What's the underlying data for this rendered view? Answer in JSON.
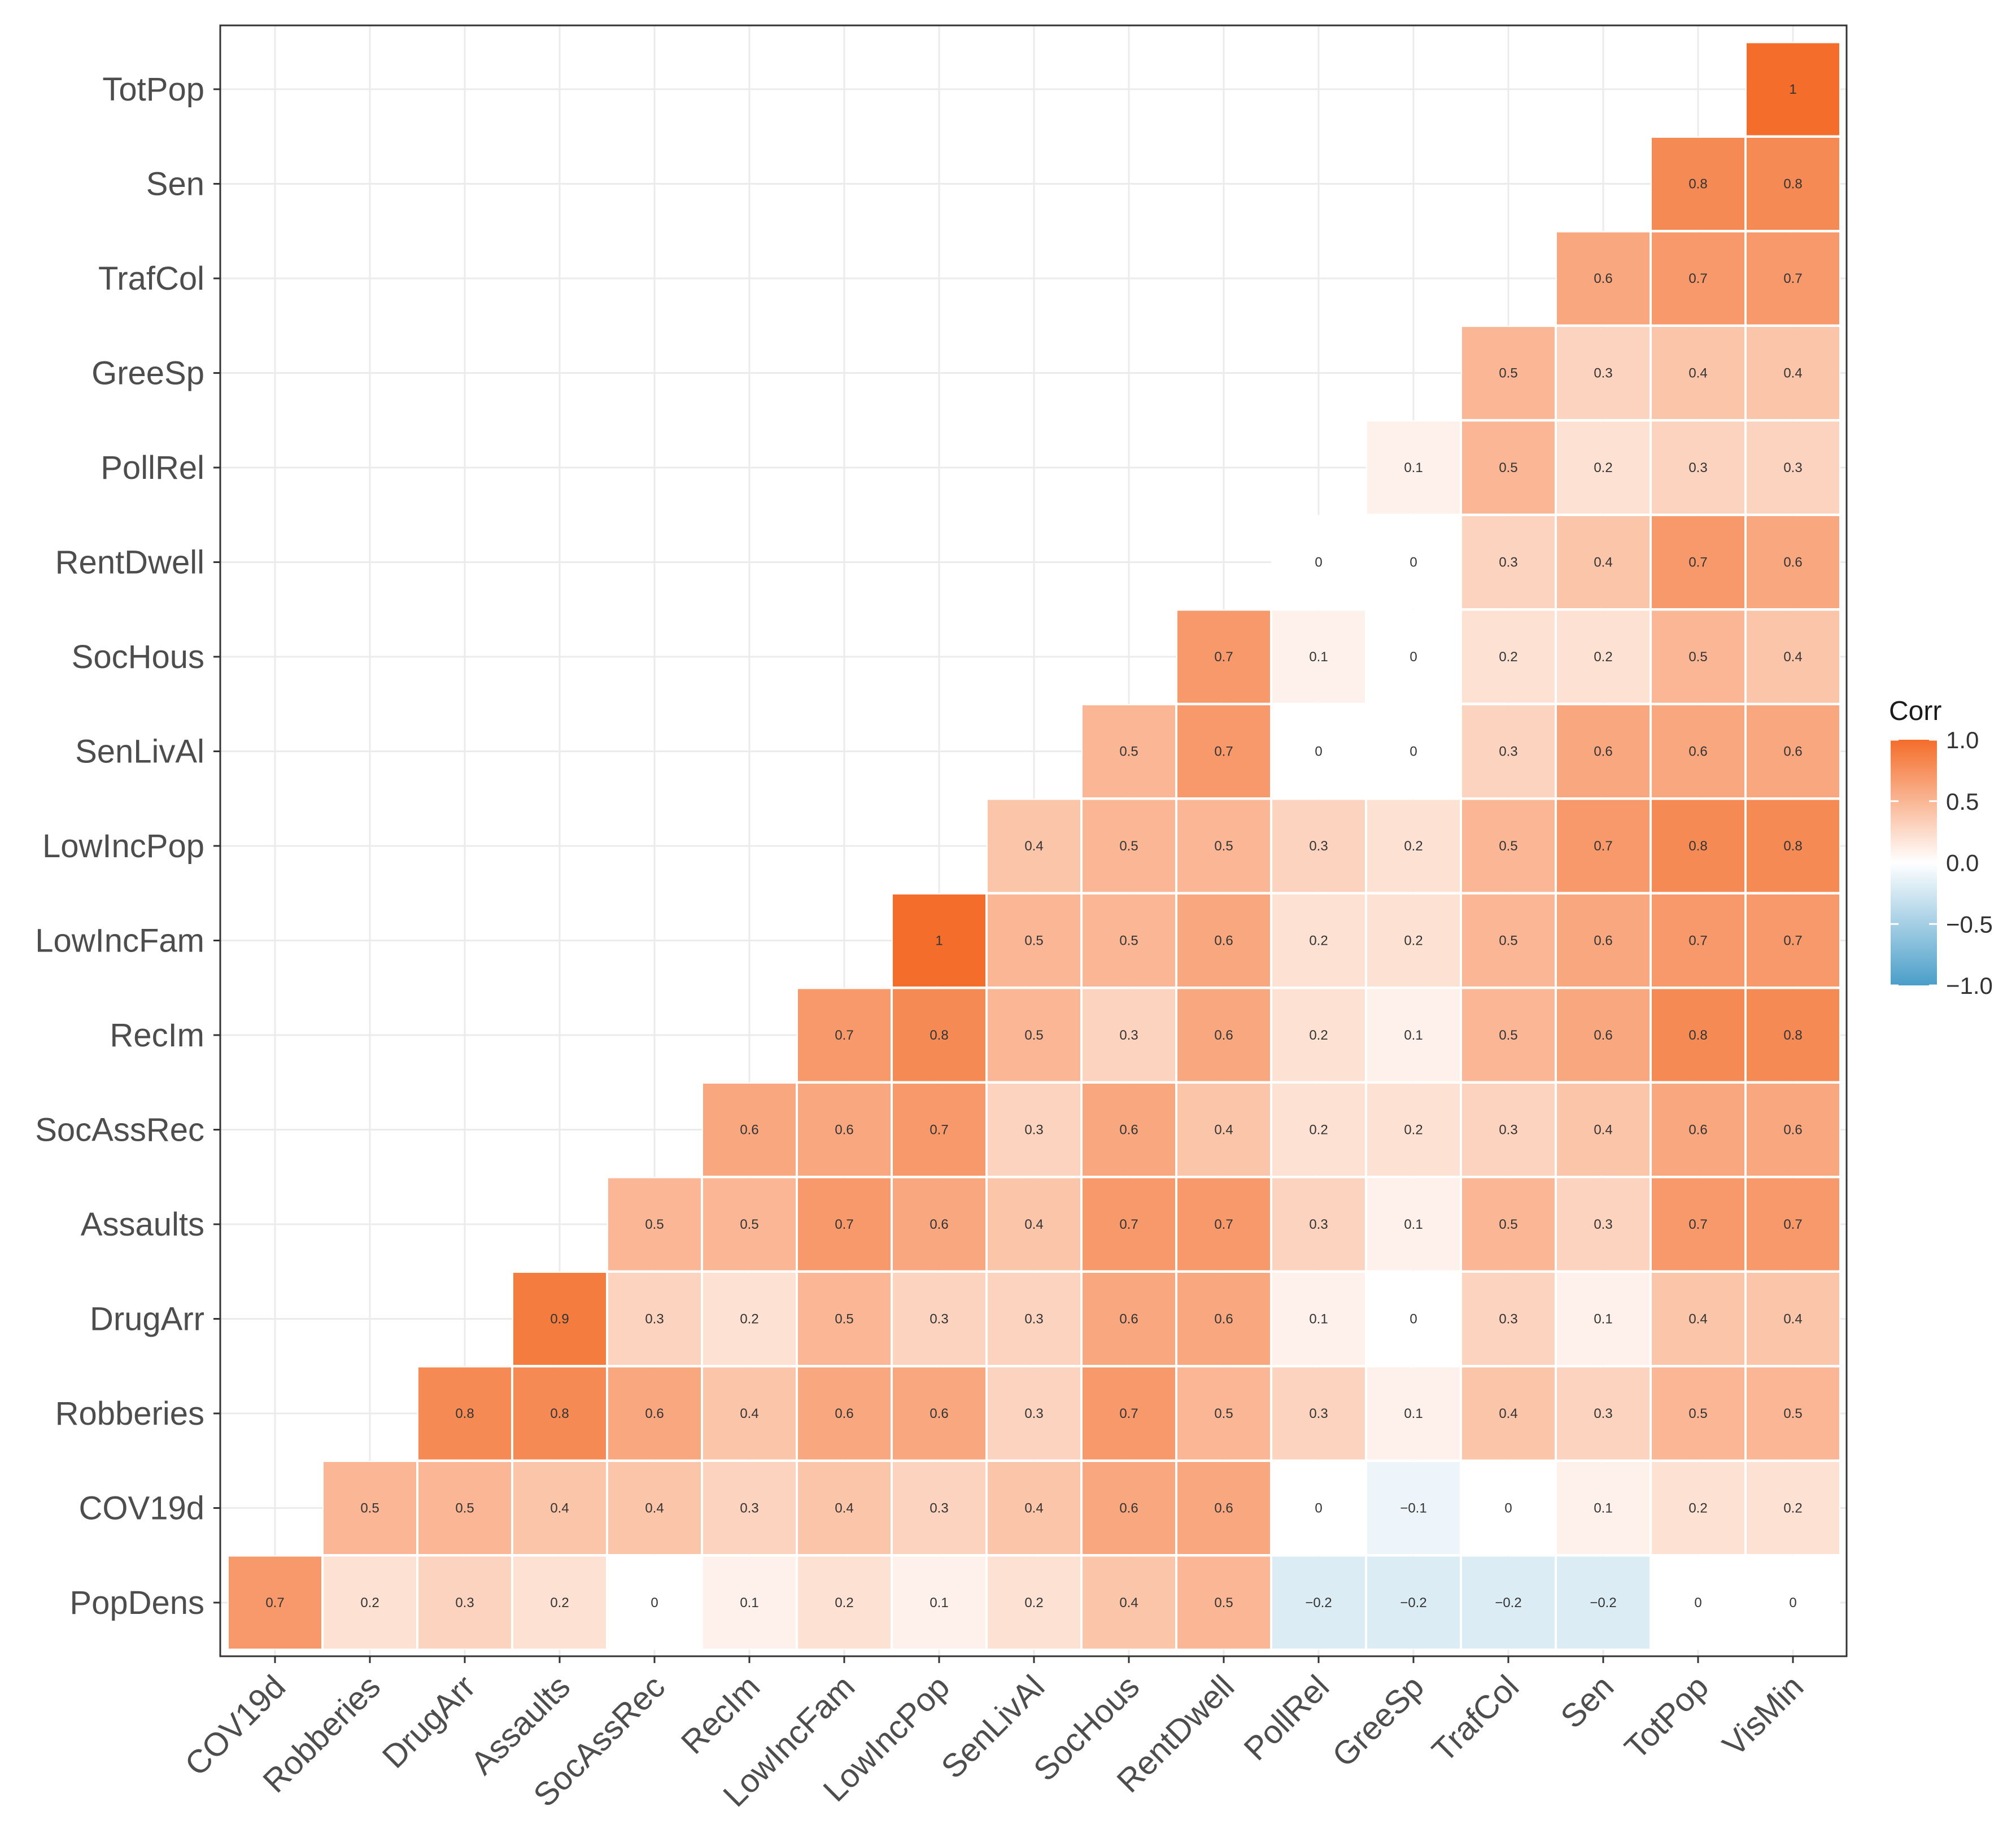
{
  "chart_data": {
    "type": "heatmap",
    "title": "",
    "xlabel": "",
    "ylabel": "",
    "grid": true,
    "x_categories": [
      "COV19d",
      "Robberies",
      "DrugArr",
      "Assaults",
      "SocAssRec",
      "RecIm",
      "LowIncFam",
      "LowIncPop",
      "SenLivAl",
      "SocHous",
      "RentDwell",
      "PollRel",
      "GreeSp",
      "TrafCol",
      "Sen",
      "TotPop",
      "VisMin"
    ],
    "y_categories": [
      "PopDens",
      "COV19d",
      "Robberies",
      "DrugArr",
      "Assaults",
      "SocAssRec",
      "RecIm",
      "LowIncFam",
      "LowIncPop",
      "SenLivAl",
      "SocHous",
      "RentDwell",
      "PollRel",
      "GreeSp",
      "TrafCol",
      "Sen",
      "TotPop"
    ],
    "value_labels": [
      [
        "0.7",
        "0.2",
        "0.3",
        "0.2",
        "0",
        "0.1",
        "0.2",
        "0.1",
        "0.2",
        "0.4",
        "0.5",
        "−0.2",
        "−0.2",
        "−0.2",
        "−0.2",
        "0",
        "0"
      ],
      [
        null,
        "0.5",
        "0.5",
        "0.4",
        "0.4",
        "0.3",
        "0.4",
        "0.3",
        "0.4",
        "0.6",
        "0.6",
        "0",
        "−0.1",
        "0",
        "0.1",
        "0.2",
        "0.2"
      ],
      [
        null,
        null,
        "0.8",
        "0.8",
        "0.6",
        "0.4",
        "0.6",
        "0.6",
        "0.3",
        "0.7",
        "0.5",
        "0.3",
        "0.1",
        "0.4",
        "0.3",
        "0.5",
        "0.5"
      ],
      [
        null,
        null,
        null,
        "0.9",
        "0.3",
        "0.2",
        "0.5",
        "0.3",
        "0.3",
        "0.6",
        "0.6",
        "0.1",
        "0",
        "0.3",
        "0.1",
        "0.4",
        "0.4"
      ],
      [
        null,
        null,
        null,
        null,
        "0.5",
        "0.5",
        "0.7",
        "0.6",
        "0.4",
        "0.7",
        "0.7",
        "0.3",
        "0.1",
        "0.5",
        "0.3",
        "0.7",
        "0.7"
      ],
      [
        null,
        null,
        null,
        null,
        null,
        "0.6",
        "0.6",
        "0.7",
        "0.3",
        "0.6",
        "0.4",
        "0.2",
        "0.2",
        "0.3",
        "0.4",
        "0.6",
        "0.6"
      ],
      [
        null,
        null,
        null,
        null,
        null,
        null,
        "0.7",
        "0.8",
        "0.5",
        "0.3",
        "0.6",
        "0.2",
        "0.1",
        "0.5",
        "0.6",
        "0.8",
        "0.8"
      ],
      [
        null,
        null,
        null,
        null,
        null,
        null,
        null,
        "1",
        "0.5",
        "0.5",
        "0.6",
        "0.2",
        "0.2",
        "0.5",
        "0.6",
        "0.7",
        "0.7"
      ],
      [
        null,
        null,
        null,
        null,
        null,
        null,
        null,
        null,
        "0.4",
        "0.5",
        "0.5",
        "0.3",
        "0.2",
        "0.5",
        "0.7",
        "0.8",
        "0.8"
      ],
      [
        null,
        null,
        null,
        null,
        null,
        null,
        null,
        null,
        null,
        "0.5",
        "0.7",
        "0",
        "0",
        "0.3",
        "0.6",
        "0.6",
        "0.6"
      ],
      [
        null,
        null,
        null,
        null,
        null,
        null,
        null,
        null,
        null,
        null,
        "0.7",
        "0.1",
        "0",
        "0.2",
        "0.2",
        "0.5",
        "0.4"
      ],
      [
        null,
        null,
        null,
        null,
        null,
        null,
        null,
        null,
        null,
        null,
        null,
        "0",
        "0",
        "0.3",
        "0.4",
        "0.7",
        "0.6"
      ],
      [
        null,
        null,
        null,
        null,
        null,
        null,
        null,
        null,
        null,
        null,
        null,
        null,
        "0.1",
        "0.5",
        "0.2",
        "0.3",
        "0.3"
      ],
      [
        null,
        null,
        null,
        null,
        null,
        null,
        null,
        null,
        null,
        null,
        null,
        null,
        null,
        "0.5",
        "0.3",
        "0.4",
        "0.4"
      ],
      [
        null,
        null,
        null,
        null,
        null,
        null,
        null,
        null,
        null,
        null,
        null,
        null,
        null,
        null,
        "0.6",
        "0.7",
        "0.7"
      ],
      [
        null,
        null,
        null,
        null,
        null,
        null,
        null,
        null,
        null,
        null,
        null,
        null,
        null,
        null,
        null,
        "0.8",
        "0.8"
      ],
      [
        null,
        null,
        null,
        null,
        null,
        null,
        null,
        null,
        null,
        null,
        null,
        null,
        null,
        null,
        null,
        null,
        "1"
      ]
    ],
    "color_scale": {
      "low": "#4a9ec9",
      "mid": "#ffffff",
      "high": "#f46d2a",
      "limits": [
        -1.0,
        1.0
      ]
    },
    "legend": {
      "title": "Corr",
      "ticks": [
        "1.0",
        "0.5",
        "0.0",
        "−0.5",
        "−1.0"
      ],
      "tick_values": [
        1.0,
        0.5,
        0.0,
        -0.5,
        -1.0
      ],
      "position": "right"
    }
  }
}
